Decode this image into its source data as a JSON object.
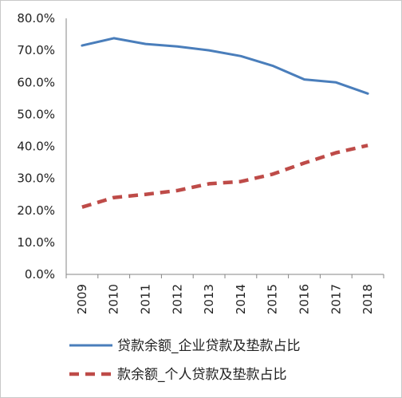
{
  "chart_data": {
    "type": "line",
    "categories": [
      "2009",
      "2010",
      "2011",
      "2012",
      "2013",
      "2014",
      "2015",
      "2016",
      "2017",
      "2018"
    ],
    "ylim": [
      0,
      80
    ],
    "yticks": [
      0,
      10,
      20,
      30,
      40,
      50,
      60,
      70,
      80
    ],
    "ytick_labels": [
      "0.0%",
      "10.0%",
      "20.0%",
      "30.0%",
      "40.0%",
      "50.0%",
      "60.0%",
      "70.0%",
      "80.0%"
    ],
    "grid": false,
    "legend_position": "bottom",
    "series": [
      {
        "name": "贷款余额_企业贷款及垫款占比",
        "values": [
          71.5,
          73.8,
          72.0,
          71.2,
          70.0,
          68.2,
          65.2,
          60.9,
          60.0,
          56.5
        ],
        "color": "#4a7ebb",
        "style": "solid"
      },
      {
        "name": "款余额_个人贷款及垫款占比",
        "values": [
          21.0,
          24.0,
          25.0,
          26.2,
          28.3,
          29.0,
          31.3,
          34.8,
          38.0,
          40.3
        ],
        "color": "#be4b48",
        "style": "dashed"
      }
    ]
  }
}
